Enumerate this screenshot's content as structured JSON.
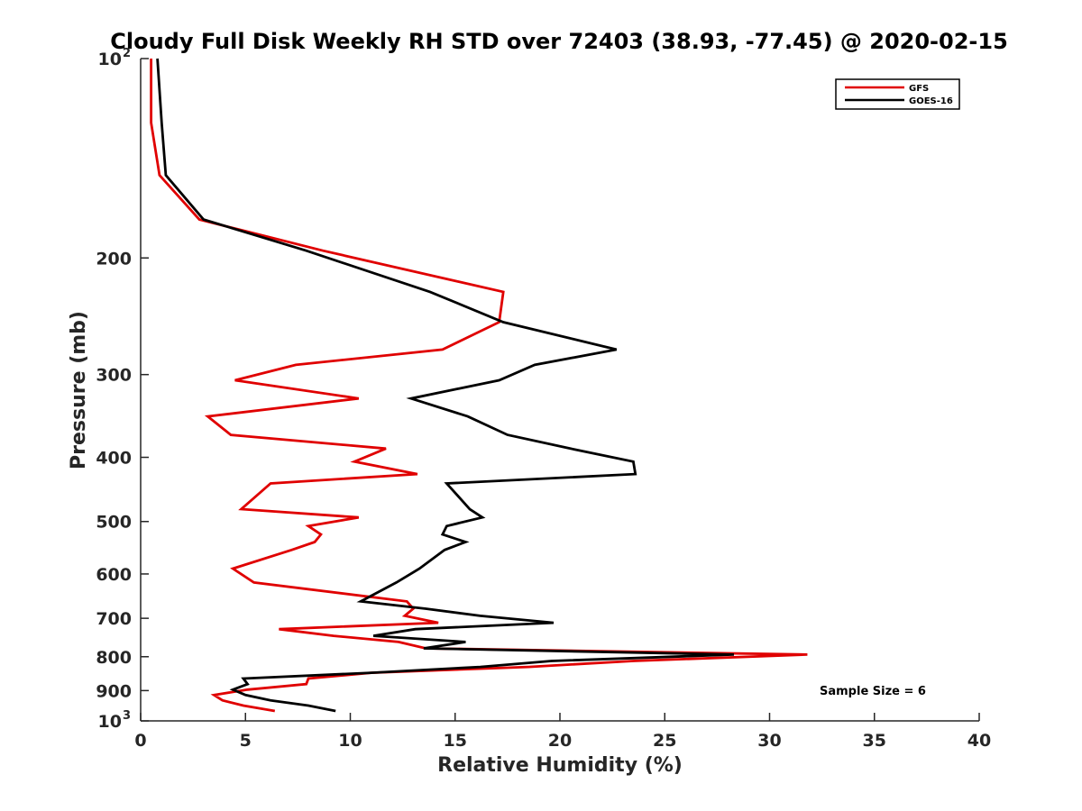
{
  "chart_data": {
    "type": "line",
    "title": "Cloudy Full Disk Weekly RH STD over 72403 (38.93, -77.45) @ 2020-02-15",
    "xlabel": "Relative Humidity (%)",
    "ylabel": "Pressure (mb)",
    "xlim": [
      0,
      40
    ],
    "ylim": [
      100,
      1000
    ],
    "y_scale": "log",
    "y_reversed": true,
    "grid": false,
    "legend_position": "top-right",
    "x_ticks": [
      "0",
      "5",
      "10",
      "15",
      "20",
      "25",
      "30",
      "35",
      "40"
    ],
    "y_ticks": [
      {
        "base": "10",
        "exp": "2"
      },
      {
        "base": "200",
        "exp": ""
      },
      {
        "base": "300",
        "exp": ""
      },
      {
        "base": "400",
        "exp": ""
      },
      {
        "base": "500",
        "exp": ""
      },
      {
        "base": "600",
        "exp": ""
      },
      {
        "base": "700",
        "exp": ""
      },
      {
        "base": "800",
        "exp": ""
      },
      {
        "base": "900",
        "exp": ""
      },
      {
        "base": "10",
        "exp": "3"
      }
    ],
    "annotation": "Sample Size = 6",
    "series": [
      {
        "name": "GFS",
        "color": "#e00000",
        "points": [
          [
            0.5,
            100
          ],
          [
            0.5,
            125
          ],
          [
            0.9,
            150
          ],
          [
            2.8,
            175
          ],
          [
            8.7,
            195
          ],
          [
            17.3,
            225
          ],
          [
            17.1,
            250
          ],
          [
            14.4,
            275
          ],
          [
            7.4,
            290
          ],
          [
            4.5,
            306
          ],
          [
            10.4,
            326
          ],
          [
            3.2,
            347
          ],
          [
            4.3,
            370
          ],
          [
            11.7,
            388
          ],
          [
            10.2,
            406
          ],
          [
            13.2,
            424
          ],
          [
            6.2,
            438
          ],
          [
            4.8,
            479
          ],
          [
            10.4,
            493
          ],
          [
            8.0,
            508
          ],
          [
            8.6,
            523
          ],
          [
            8.3,
            537
          ],
          [
            7.2,
            552
          ],
          [
            4.4,
            589
          ],
          [
            5.4,
            618
          ],
          [
            12.7,
            660
          ],
          [
            13.0,
            677
          ],
          [
            12.6,
            694
          ],
          [
            14.2,
            711
          ],
          [
            6.6,
            727
          ],
          [
            9.2,
            744
          ],
          [
            12.3,
            760
          ],
          [
            13.6,
            777
          ],
          [
            31.8,
            794
          ],
          [
            23.5,
            812
          ],
          [
            18.5,
            829
          ],
          [
            11.0,
            846
          ],
          [
            8.0,
            863
          ],
          [
            7.9,
            880
          ],
          [
            5.1,
            897
          ],
          [
            3.5,
            914
          ],
          [
            3.9,
            931
          ],
          [
            4.9,
            948
          ],
          [
            6.4,
            966
          ]
        ]
      },
      {
        "name": "GOES-16",
        "color": "#000000",
        "points": [
          [
            0.8,
            100
          ],
          [
            1.0,
            125
          ],
          [
            1.2,
            150
          ],
          [
            3.0,
            175
          ],
          [
            7.9,
            195
          ],
          [
            13.8,
            225
          ],
          [
            17.3,
            250
          ],
          [
            22.7,
            275
          ],
          [
            18.8,
            290
          ],
          [
            17.1,
            306
          ],
          [
            12.9,
            326
          ],
          [
            15.6,
            347
          ],
          [
            17.5,
            370
          ],
          [
            20.5,
            388
          ],
          [
            23.5,
            406
          ],
          [
            23.6,
            424
          ],
          [
            14.6,
            438
          ],
          [
            15.7,
            479
          ],
          [
            16.3,
            493
          ],
          [
            14.6,
            508
          ],
          [
            14.4,
            523
          ],
          [
            15.5,
            537
          ],
          [
            14.5,
            552
          ],
          [
            13.3,
            589
          ],
          [
            12.2,
            618
          ],
          [
            10.5,
            660
          ],
          [
            13.6,
            677
          ],
          [
            16.2,
            694
          ],
          [
            19.7,
            711
          ],
          [
            13.1,
            727
          ],
          [
            11.1,
            744
          ],
          [
            15.5,
            760
          ],
          [
            13.5,
            777
          ],
          [
            28.3,
            794
          ],
          [
            19.6,
            812
          ],
          [
            16.2,
            829
          ],
          [
            11.0,
            846
          ],
          [
            4.9,
            863
          ],
          [
            5.1,
            880
          ],
          [
            4.4,
            897
          ],
          [
            5.0,
            914
          ],
          [
            6.2,
            931
          ],
          [
            8.0,
            948
          ],
          [
            9.3,
            966
          ]
        ]
      }
    ]
  }
}
